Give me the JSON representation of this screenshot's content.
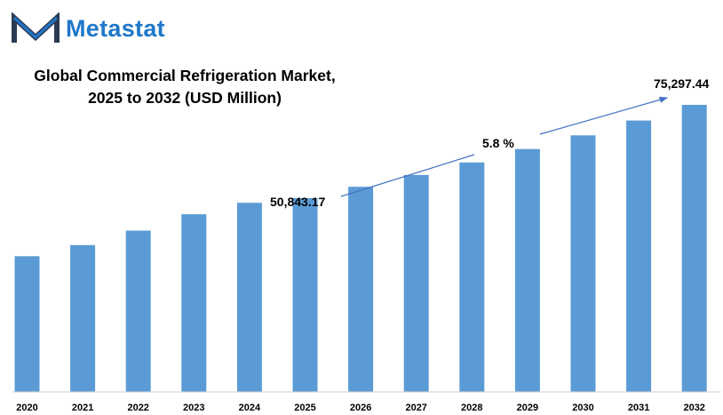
{
  "brand": {
    "name": "Metastat",
    "logo_icon": "metastat-m-logo-icon",
    "colors": {
      "dark": "#2b3a55",
      "accent": "#1f77c9"
    }
  },
  "chart_data": {
    "type": "bar",
    "title_line1": "Global Commercial Refrigeration Market,",
    "title_line2": "2025 to 2032 (USD Million)",
    "categories": [
      "2020",
      "2021",
      "2022",
      "2023",
      "2024",
      "2025",
      "2026",
      "2027",
      "2028",
      "2029",
      "2030",
      "2031",
      "2032"
    ],
    "values": [
      35600,
      38500,
      42300,
      46600,
      49600,
      50843.17,
      53800,
      56900,
      60200,
      63700,
      67300,
      71200,
      75297.44
    ],
    "ylim": [
      0,
      80000
    ],
    "grid": false,
    "bar_color": "#5b9bd5",
    "annotations": {
      "start_label": "50,843.17",
      "end_label": "75,297.44",
      "cagr_label": "5.8 %"
    }
  }
}
